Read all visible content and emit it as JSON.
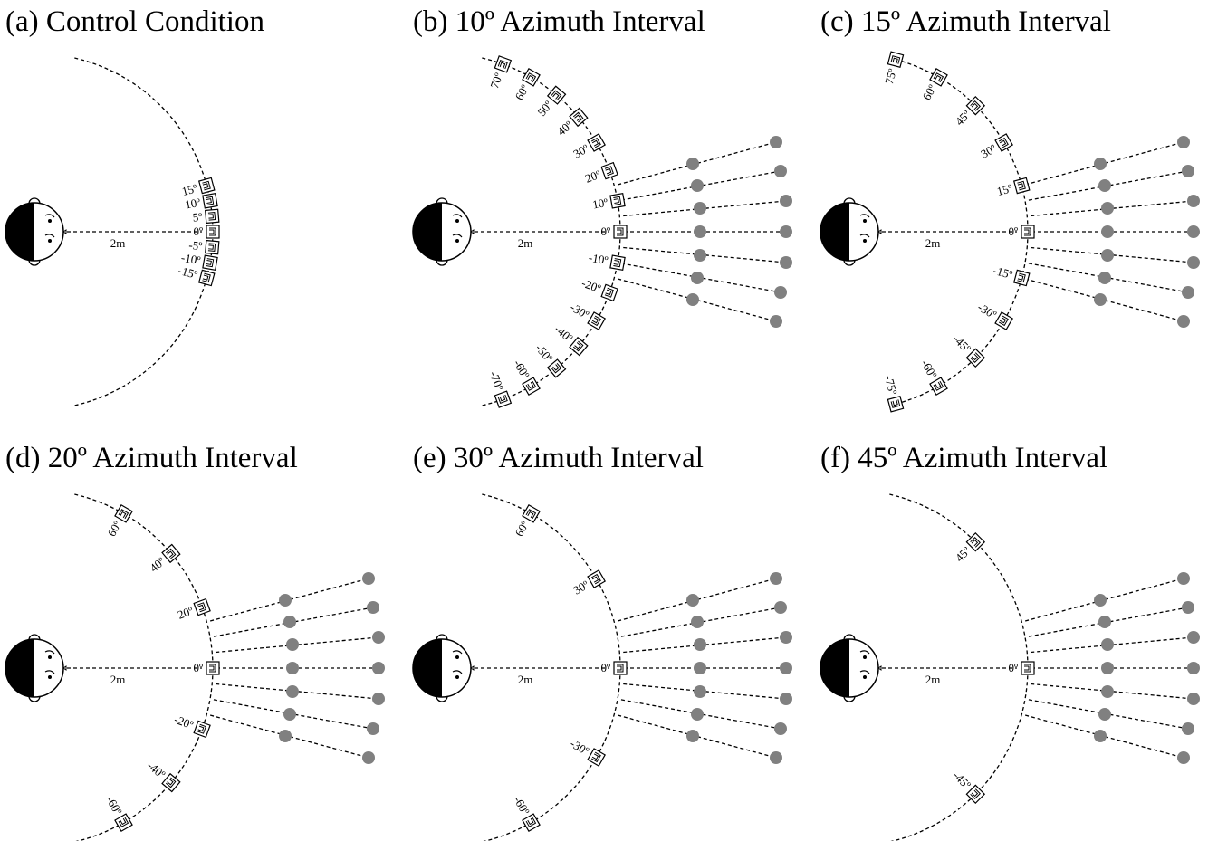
{
  "panels": [
    {
      "title": "(a) Control Condition",
      "distance": "2m",
      "angles": [
        "15º",
        "10º",
        "5º",
        "0º",
        "-5º",
        "-10º",
        "-15º"
      ],
      "show_listeners": false
    },
    {
      "title": "(b) 10º Azimuth Interval",
      "distance": "2m",
      "angles": [
        "70º",
        "60º",
        "50º",
        "40º",
        "30º",
        "20º",
        "10º",
        "0º",
        "-10º",
        "-20º",
        "-30º",
        "-40º",
        "-50º",
        "-60º",
        "-70º"
      ],
      "show_listeners": true
    },
    {
      "title": "(c) 15º Azimuth Interval",
      "distance": "2m",
      "angles": [
        "75º",
        "60º",
        "45º",
        "30º",
        "15º",
        "0º",
        "-15º",
        "-30º",
        "-45º",
        "-60º",
        "-75º"
      ],
      "show_listeners": true
    },
    {
      "title": "(d) 20º Azimuth Interval",
      "distance": "2m",
      "angles": [
        "60º",
        "40º",
        "20º",
        "0º",
        "-20º",
        "-40º",
        "-60º"
      ],
      "show_listeners": true
    },
    {
      "title": "(e) 30º Azimuth Interval",
      "distance": "2m",
      "angles": [
        "60º",
        "30º",
        "0º",
        "-30º",
        "-60º"
      ],
      "show_listeners": true
    },
    {
      "title": "(f) 45º Azimuth Interval",
      "distance": "2m",
      "angles": [
        "45º",
        "0º",
        "-45º"
      ],
      "show_listeners": true
    }
  ]
}
